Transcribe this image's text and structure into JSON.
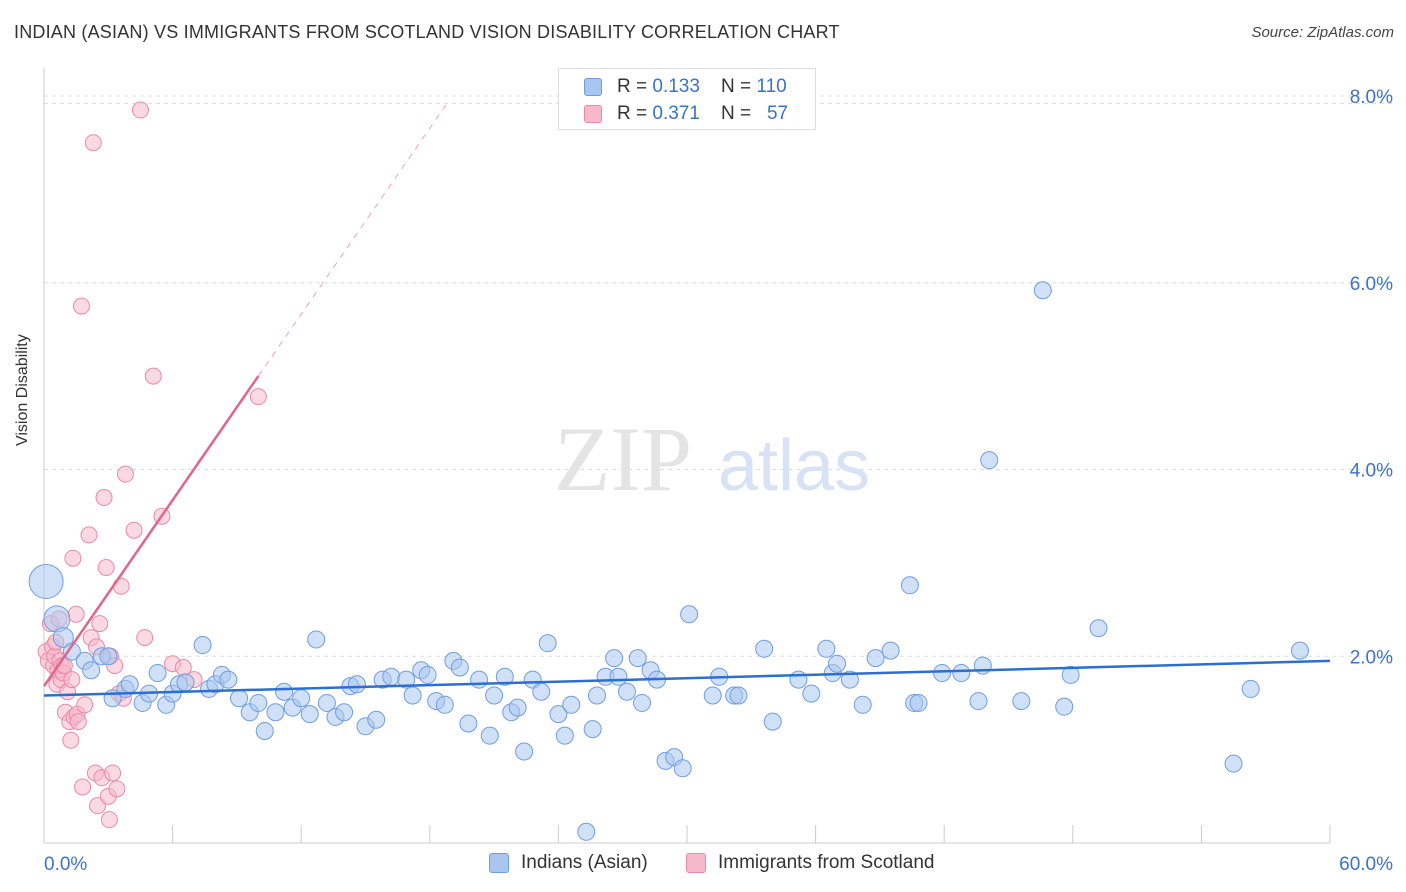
{
  "title": "INDIAN (ASIAN) VS IMMIGRANTS FROM SCOTLAND VISION DISABILITY CORRELATION CHART",
  "source": "Source: ZipAtlas.com",
  "watermark": {
    "zip": "ZIP",
    "atlas": "atlas"
  },
  "legend_top": {
    "rows": [
      {
        "r_label": "R = ",
        "r_value": "0.133",
        "n_label": "N = ",
        "n_value": "110"
      },
      {
        "r_label": "R = ",
        "r_value": "0.371",
        "n_label": "N = ",
        "n_value": "57"
      }
    ]
  },
  "colors": {
    "blue_fill": "#a9c6ee",
    "blue_stroke": "#6f9ee0",
    "blue_line": "#2a6fd1",
    "pink_fill": "#f6b9cb",
    "pink_stroke": "#ea8aa8",
    "pink_line": "#e0648c",
    "axis_label": "#3b73c8",
    "grid": "#dddddd"
  },
  "chart_data": {
    "type": "scatter",
    "title": "INDIAN (ASIAN) VS IMMIGRANTS FROM SCOTLAND VISION DISABILITY CORRELATION CHART",
    "xlabel": "",
    "ylabel": "Vision Disability",
    "xlim": [
      0,
      60
    ],
    "ylim": [
      0,
      8.3
    ],
    "x_tick_labels": [
      "0.0%",
      "60.0%"
    ],
    "y_ticks": [
      2,
      4,
      6,
      8
    ],
    "y_tick_labels": [
      "2.0%",
      "4.0%",
      "6.0%",
      "8.0%"
    ],
    "grid": true,
    "legend_position": "bottom",
    "series": [
      {
        "name": "Indians (Asian)",
        "color": "#a9c6ee",
        "r": 0.133,
        "n": 110,
        "trend": {
          "x": [
            0,
            60
          ],
          "y": [
            1.58,
            1.95
          ]
        },
        "points": [
          [
            0.1,
            2.8,
            1
          ],
          [
            0.6,
            2.4,
            1
          ],
          [
            0.9,
            2.2,
            1
          ],
          [
            1.3,
            2.05,
            1
          ],
          [
            1.9,
            1.95,
            1
          ],
          [
            2.2,
            1.85,
            1
          ],
          [
            2.7,
            2.0,
            1
          ],
          [
            3.0,
            2.0,
            1
          ],
          [
            3.2,
            1.55,
            1
          ],
          [
            3.8,
            1.65,
            1
          ],
          [
            4.0,
            1.7,
            1
          ],
          [
            4.6,
            1.5,
            1
          ],
          [
            4.9,
            1.6,
            1
          ],
          [
            5.3,
            1.82,
            1
          ],
          [
            5.7,
            1.48,
            1
          ],
          [
            6.0,
            1.6,
            1
          ],
          [
            6.3,
            1.7,
            1
          ],
          [
            6.6,
            1.72,
            1
          ],
          [
            7.4,
            2.12,
            1
          ],
          [
            7.7,
            1.65,
            1
          ],
          [
            8.0,
            1.7,
            1
          ],
          [
            8.3,
            1.8,
            1
          ],
          [
            8.6,
            1.75,
            1
          ],
          [
            9.1,
            1.55,
            1
          ],
          [
            9.6,
            1.4,
            1
          ],
          [
            10.0,
            1.5,
            1
          ],
          [
            10.3,
            1.2,
            1
          ],
          [
            10.8,
            1.4,
            1
          ],
          [
            11.2,
            1.62,
            1
          ],
          [
            11.6,
            1.45,
            1
          ],
          [
            12.0,
            1.55,
            1
          ],
          [
            12.4,
            1.38,
            1
          ],
          [
            12.7,
            2.18,
            1
          ],
          [
            13.2,
            1.5,
            1
          ],
          [
            13.6,
            1.35,
            1
          ],
          [
            14.0,
            1.4,
            1
          ],
          [
            14.3,
            1.68,
            1
          ],
          [
            14.6,
            1.7,
            1
          ],
          [
            15.0,
            1.25,
            1
          ],
          [
            15.5,
            1.32,
            1
          ],
          [
            15.8,
            1.75,
            1
          ],
          [
            16.2,
            1.78,
            1
          ],
          [
            16.9,
            1.75,
            1
          ],
          [
            17.2,
            1.58,
            1
          ],
          [
            17.6,
            1.85,
            1
          ],
          [
            17.9,
            1.8,
            1
          ],
          [
            18.3,
            1.52,
            1
          ],
          [
            18.7,
            1.48,
            1
          ],
          [
            19.1,
            1.95,
            1
          ],
          [
            19.4,
            1.88,
            1
          ],
          [
            19.8,
            1.28,
            1
          ],
          [
            20.3,
            1.75,
            1
          ],
          [
            20.8,
            1.15,
            1
          ],
          [
            21.0,
            1.58,
            1
          ],
          [
            21.5,
            1.78,
            1
          ],
          [
            21.8,
            1.4,
            1
          ],
          [
            22.1,
            1.45,
            1
          ],
          [
            22.4,
            0.98,
            1
          ],
          [
            22.8,
            1.75,
            1
          ],
          [
            23.2,
            1.62,
            1
          ],
          [
            23.5,
            2.14,
            1
          ],
          [
            24.0,
            1.38,
            1
          ],
          [
            24.3,
            1.15,
            1
          ],
          [
            24.6,
            1.48,
            1
          ],
          [
            25.3,
            0.12,
            1
          ],
          [
            25.6,
            1.22,
            1
          ],
          [
            25.8,
            1.58,
            1
          ],
          [
            26.2,
            1.78,
            1
          ],
          [
            26.6,
            1.98,
            1
          ],
          [
            26.8,
            1.78,
            1
          ],
          [
            27.2,
            1.62,
            1
          ],
          [
            27.9,
            1.5,
            1
          ],
          [
            27.7,
            1.98,
            1
          ],
          [
            28.3,
            1.85,
            1
          ],
          [
            28.6,
            1.75,
            1
          ],
          [
            29.0,
            0.88,
            1
          ],
          [
            29.4,
            0.92,
            1
          ],
          [
            29.8,
            0.8,
            1
          ],
          [
            30.1,
            2.45,
            1
          ],
          [
            31.2,
            1.58,
            1
          ],
          [
            31.5,
            1.78,
            1
          ],
          [
            32.2,
            1.58,
            1
          ],
          [
            32.4,
            1.58,
            1
          ],
          [
            33.6,
            2.08,
            1
          ],
          [
            34.0,
            1.3,
            1
          ],
          [
            35.2,
            1.75,
            1
          ],
          [
            35.8,
            1.6,
            1
          ],
          [
            36.5,
            2.08,
            1
          ],
          [
            36.8,
            1.82,
            1
          ],
          [
            37.0,
            1.92,
            1
          ],
          [
            37.6,
            1.75,
            1
          ],
          [
            38.2,
            1.48,
            1
          ],
          [
            38.8,
            1.98,
            1
          ],
          [
            39.5,
            2.06,
            1
          ],
          [
            40.4,
            2.76,
            1
          ],
          [
            40.6,
            1.5,
            1
          ],
          [
            40.8,
            1.5,
            1
          ],
          [
            41.9,
            1.82,
            1
          ],
          [
            42.8,
            1.82,
            1
          ],
          [
            43.6,
            1.52,
            1
          ],
          [
            43.8,
            1.9,
            1
          ],
          [
            44.1,
            4.1,
            1
          ],
          [
            45.6,
            1.52,
            1
          ],
          [
            46.6,
            5.92,
            1
          ],
          [
            47.6,
            1.46,
            1
          ],
          [
            47.9,
            1.8,
            1
          ],
          [
            49.2,
            2.3,
            1
          ],
          [
            55.5,
            0.85,
            1
          ],
          [
            56.3,
            1.65,
            1
          ],
          [
            58.6,
            2.06,
            1
          ]
        ]
      },
      {
        "name": "Immigrants from Scotland",
        "color": "#f6b9cb",
        "r": 0.371,
        "n": 57,
        "trend": {
          "x": [
            0,
            10
          ],
          "y": [
            1.68,
            5.0
          ]
        },
        "trend_extension": {
          "x": [
            10,
            18.8
          ],
          "y": [
            5.0,
            7.92
          ]
        },
        "points": [
          [
            0.1,
            2.05
          ],
          [
            0.2,
            1.95
          ],
          [
            0.3,
            2.35
          ],
          [
            0.4,
            2.1
          ],
          [
            0.45,
            1.9
          ],
          [
            0.5,
            2.0
          ],
          [
            0.55,
            2.15
          ],
          [
            0.6,
            1.7
          ],
          [
            0.65,
            1.85
          ],
          [
            0.7,
            2.4
          ],
          [
            0.75,
            1.95
          ],
          [
            0.8,
            1.75
          ],
          [
            0.85,
            1.9
          ],
          [
            0.9,
            1.82
          ],
          [
            0.95,
            1.9
          ],
          [
            1.0,
            1.4
          ],
          [
            1.1,
            1.62
          ],
          [
            1.2,
            1.3
          ],
          [
            1.25,
            1.1
          ],
          [
            1.3,
            1.75
          ],
          [
            1.35,
            3.05
          ],
          [
            1.4,
            1.35
          ],
          [
            1.5,
            2.45
          ],
          [
            1.55,
            1.38
          ],
          [
            1.6,
            1.3
          ],
          [
            1.75,
            5.75
          ],
          [
            1.8,
            0.6
          ],
          [
            1.9,
            1.48
          ],
          [
            2.1,
            3.3
          ],
          [
            2.2,
            2.2
          ],
          [
            2.3,
            7.5
          ],
          [
            2.4,
            0.75
          ],
          [
            2.45,
            2.1
          ],
          [
            2.5,
            0.4
          ],
          [
            2.6,
            2.35
          ],
          [
            2.7,
            0.7
          ],
          [
            2.8,
            3.7
          ],
          [
            2.9,
            2.95
          ],
          [
            3.0,
            0.5
          ],
          [
            3.05,
            0.25
          ],
          [
            3.1,
            2.0
          ],
          [
            3.2,
            0.75
          ],
          [
            3.3,
            1.9
          ],
          [
            3.4,
            0.58
          ],
          [
            3.5,
            1.6
          ],
          [
            3.6,
            2.75
          ],
          [
            3.7,
            1.55
          ],
          [
            3.8,
            3.95
          ],
          [
            4.2,
            3.35
          ],
          [
            4.5,
            7.85
          ],
          [
            4.7,
            2.2
          ],
          [
            5.1,
            5.0
          ],
          [
            5.5,
            3.5
          ],
          [
            6.0,
            1.92
          ],
          [
            6.5,
            1.88
          ],
          [
            7.0,
            1.75
          ],
          [
            10.0,
            4.78
          ]
        ]
      }
    ]
  }
}
